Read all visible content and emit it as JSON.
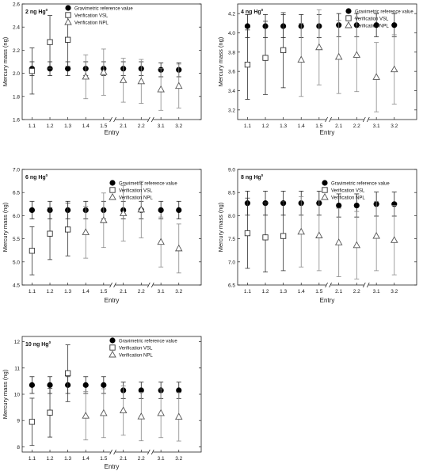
{
  "chart_data": [
    {
      "type": "scatter",
      "title": "2 ng Hg",
      "title_sup": "0",
      "xlabel": "Entry",
      "ylabel": "Mercury mass (ng)",
      "ylim": [
        1.6,
        2.6
      ],
      "yticks": [
        "1.6",
        "1.8",
        "2.0",
        "2.2",
        "2.4",
        "2.6"
      ],
      "categories": [
        "1.1",
        "1.2",
        "1.3",
        "1.4",
        "1.5",
        "2.1",
        "2.2",
        "3.1",
        "3.2"
      ],
      "axis_breaks_after": [
        4,
        6
      ],
      "legend_position": "right",
      "series": [
        {
          "name": "Gravimetric reference value",
          "marker": "circle-filled",
          "values": [
            2.04,
            2.04,
            2.04,
            2.04,
            2.04,
            2.04,
            2.04,
            2.03,
            2.03
          ],
          "err": [
            0.06,
            0.06,
            0.06,
            0.06,
            0.06,
            0.06,
            0.06,
            0.06,
            0.06
          ]
        },
        {
          "name": "Verification VSL",
          "marker": "square-open",
          "values": [
            2.02,
            2.27,
            2.29,
            null,
            null,
            null,
            null,
            null,
            null
          ],
          "err": [
            0.2,
            0.23,
            0.23,
            null,
            null,
            null,
            null,
            null,
            null
          ]
        },
        {
          "name": "Verification NPL",
          "marker": "triangle-open",
          "values": [
            null,
            null,
            null,
            1.97,
            2.01,
            1.94,
            1.93,
            1.86,
            1.89
          ],
          "err": [
            null,
            null,
            null,
            0.19,
            0.2,
            0.19,
            0.19,
            0.18,
            0.19
          ]
        }
      ]
    },
    {
      "type": "scatter",
      "title": "4 ng Hg",
      "title_sup": "0",
      "xlabel": "Entry",
      "ylabel": "Mercury mass (ng)",
      "ylim": [
        3.1,
        4.3
      ],
      "yticks": [
        "3.2",
        "3.4",
        "3.6",
        "3.8",
        "4.0",
        "4.2"
      ],
      "categories": [
        "1.1",
        "1.2",
        "1.3",
        "1.4",
        "1.5",
        "2.1",
        "2.2",
        "3.1",
        "3.2"
      ],
      "axis_breaks_after": [
        4,
        6
      ],
      "legend_position": "right",
      "series": [
        {
          "name": "Gravimetric reference value",
          "marker": "circle-filled",
          "values": [
            4.07,
            4.07,
            4.07,
            4.07,
            4.07,
            4.08,
            4.08,
            4.08,
            4.08
          ],
          "err": [
            0.12,
            0.12,
            0.12,
            0.12,
            0.12,
            0.12,
            0.12,
            0.12,
            0.12
          ]
        },
        {
          "name": "Verification VSL",
          "marker": "square-open",
          "values": [
            3.67,
            3.74,
            3.82,
            null,
            null,
            null,
            null,
            null,
            null
          ],
          "err": [
            0.36,
            0.38,
            0.39,
            null,
            null,
            null,
            null,
            null,
            null
          ]
        },
        {
          "name": "Verification NPL",
          "marker": "triangle-open",
          "values": [
            null,
            null,
            null,
            3.72,
            3.85,
            3.75,
            3.77,
            3.54,
            3.62
          ],
          "err": [
            null,
            null,
            null,
            0.38,
            0.39,
            0.38,
            0.38,
            0.36,
            0.36
          ]
        }
      ]
    },
    {
      "type": "scatter",
      "title": "6 ng Hg",
      "title_sup": "0",
      "xlabel": "Entry",
      "ylabel": "Mercury mass (ng)",
      "ylim": [
        4.5,
        7.0
      ],
      "yticks": [
        "4.5",
        "5.0",
        "5.5",
        "6.0",
        "6.5",
        "7.0"
      ],
      "categories": [
        "1.1",
        "1.2",
        "1.3",
        "1.4",
        "1.5",
        "2.1",
        "2.2",
        "3.1",
        "3.2"
      ],
      "axis_breaks_after": [
        4,
        6
      ],
      "legend_position": "right",
      "series": [
        {
          "name": "Gravimetric reference value",
          "marker": "circle-filled",
          "values": [
            6.12,
            6.12,
            6.12,
            6.12,
            6.12,
            6.12,
            6.12,
            6.12,
            6.12
          ],
          "err": [
            0.19,
            0.19,
            0.19,
            0.19,
            0.19,
            0.19,
            0.19,
            0.19,
            0.19
          ]
        },
        {
          "name": "Verification VSL",
          "marker": "square-open",
          "values": [
            5.24,
            5.61,
            5.7,
            null,
            null,
            null,
            null,
            null,
            null
          ],
          "err": [
            0.52,
            0.56,
            0.57,
            null,
            null,
            null,
            null,
            null,
            null
          ]
        },
        {
          "name": "Verification NPL",
          "marker": "triangle-open",
          "values": [
            null,
            null,
            null,
            5.64,
            5.9,
            6.05,
            6.13,
            5.43,
            5.29
          ],
          "err": [
            null,
            null,
            null,
            0.56,
            0.59,
            0.6,
            0.61,
            0.54,
            0.53
          ]
        }
      ]
    },
    {
      "type": "scatter",
      "title": "8 ng Hg",
      "title_sup": "0",
      "xlabel": "Entry",
      "ylabel": "Mercury mass (ng)",
      "ylim": [
        6.5,
        9.0
      ],
      "yticks": [
        "6.5",
        "7.0",
        "7.5",
        "8.0",
        "8.5",
        "9.0"
      ],
      "categories": [
        "1.1",
        "1.2",
        "1.3",
        "1.4",
        "1.5",
        "2.1",
        "2.2",
        "3.1",
        "3.2"
      ],
      "axis_breaks_after": [
        4,
        6
      ],
      "legend_position": "right",
      "series": [
        {
          "name": "Gravimetric reference value",
          "marker": "circle-filled",
          "values": [
            8.27,
            8.27,
            8.27,
            8.27,
            8.27,
            8.22,
            8.22,
            8.25,
            8.25
          ],
          "err": [
            0.26,
            0.26,
            0.26,
            0.26,
            0.26,
            0.25,
            0.25,
            0.26,
            0.26
          ]
        },
        {
          "name": "Verification VSL",
          "marker": "square-open",
          "values": [
            7.62,
            7.53,
            7.56,
            null,
            null,
            null,
            null,
            null,
            null
          ],
          "err": [
            0.76,
            0.75,
            0.75,
            null,
            null,
            null,
            null,
            null,
            null
          ]
        },
        {
          "name": "Verification NPL",
          "marker": "triangle-open",
          "values": [
            null,
            null,
            null,
            7.65,
            7.57,
            7.42,
            7.36,
            7.56,
            7.47
          ],
          "err": [
            null,
            null,
            null,
            0.76,
            0.76,
            0.74,
            0.73,
            0.75,
            0.75
          ]
        }
      ]
    },
    {
      "type": "scatter",
      "title": "10 ng Hg",
      "title_sup": "0",
      "xlabel": "Entry",
      "ylabel": "Mercury mass (ng)",
      "ylim": [
        7.8,
        12.2
      ],
      "yticks": [
        "8",
        "9",
        "10",
        "11",
        "12"
      ],
      "categories": [
        "1.1",
        "1.2",
        "1.3",
        "1.4",
        "1.5",
        "2.1",
        "2.2",
        "3.1",
        "3.2"
      ],
      "axis_breaks_after": [
        4,
        6
      ],
      "legend_position": "top-right",
      "series": [
        {
          "name": "Gravimetric reference value",
          "marker": "circle-filled",
          "values": [
            10.35,
            10.35,
            10.35,
            10.35,
            10.35,
            10.15,
            10.15,
            10.15,
            10.15
          ],
          "err": [
            0.32,
            0.32,
            0.32,
            0.32,
            0.32,
            0.31,
            0.31,
            0.31,
            0.31
          ]
        },
        {
          "name": "Verification VSL",
          "marker": "square-open",
          "values": [
            8.95,
            9.3,
            10.8,
            null,
            null,
            null,
            null,
            null,
            null
          ],
          "err": [
            0.9,
            0.93,
            1.08,
            null,
            null,
            null,
            null,
            null,
            null
          ]
        },
        {
          "name": "Verification NPL",
          "marker": "triangle-open",
          "values": [
            null,
            null,
            null,
            9.18,
            9.28,
            9.38,
            9.15,
            9.28,
            9.14
          ],
          "err": [
            null,
            null,
            null,
            0.92,
            0.93,
            0.94,
            0.92,
            0.93,
            0.92
          ]
        }
      ]
    }
  ]
}
